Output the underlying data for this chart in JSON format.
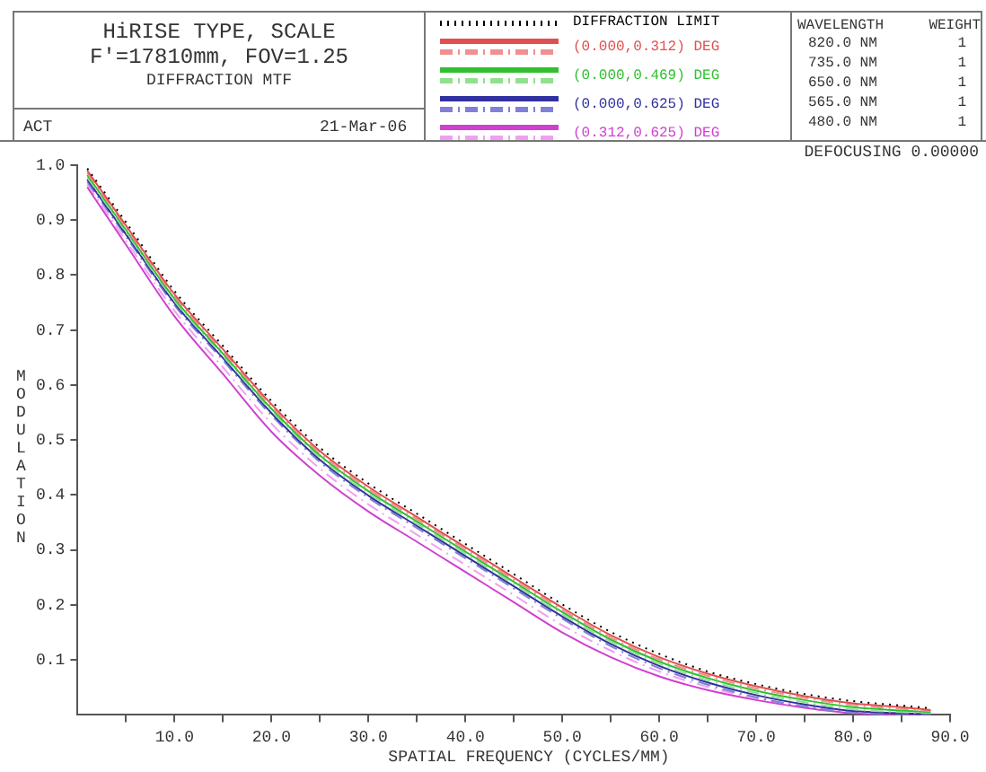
{
  "chart_data": {
    "type": "line",
    "title": "HiRISE TYPE, SCALE",
    "subtitle": "F'=17810mm, FOV=1.25",
    "xlabel": "SPATIAL FREQUENCY (CYCLES/MM)",
    "ylabel": "MODULATION",
    "annotations": [
      "DIFFRACTION MTF",
      "ACT",
      "21-Mar-06",
      "WAVELENGTH",
      "WEIGHT",
      "820.0 NM",
      "1",
      "735.0 NM",
      "1",
      "650.0 NM",
      "1",
      "565.0 NM",
      "1",
      "480.0 NM",
      "1",
      "DEFOCUSING 0.00000"
    ],
    "x": [
      1,
      5,
      10,
      15,
      20,
      25,
      30,
      35,
      40,
      45,
      50,
      55,
      60,
      65,
      70,
      75,
      80,
      85,
      88
    ],
    "series": [
      {
        "name": "DIFFRACTION LIMIT",
        "color": "#000000",
        "line_style": "dotted",
        "values": [
          0.994,
          0.896,
          0.771,
          0.671,
          0.571,
          0.486,
          0.421,
          0.366,
          0.311,
          0.256,
          0.201,
          0.151,
          0.111,
          0.079,
          0.056,
          0.038,
          0.025,
          0.017,
          0.012
        ]
      },
      {
        "name": "(0.000,0.312) DEG",
        "color": "#e05050",
        "line_style": "solid",
        "values": [
          0.99,
          0.89,
          0.765,
          0.665,
          0.565,
          0.48,
          0.415,
          0.36,
          0.305,
          0.25,
          0.195,
          0.145,
          0.105,
          0.075,
          0.052,
          0.034,
          0.021,
          0.014,
          0.009
        ]
      },
      {
        "color": "#f09090",
        "line_style": "dashed",
        "values": [
          0.986,
          0.886,
          0.761,
          0.661,
          0.561,
          0.476,
          0.411,
          0.356,
          0.301,
          0.246,
          0.191,
          0.141,
          0.101,
          0.071,
          0.048,
          0.031,
          0.018,
          0.011,
          0.007
        ]
      },
      {
        "name": "(0.000,0.469) DEG",
        "color": "#30c030",
        "line_style": "solid",
        "values": [
          0.982,
          0.882,
          0.757,
          0.657,
          0.557,
          0.472,
          0.407,
          0.352,
          0.297,
          0.242,
          0.187,
          0.137,
          0.097,
          0.067,
          0.044,
          0.027,
          0.014,
          0.008,
          0.005
        ]
      },
      {
        "color": "#90e090",
        "line_style": "dashed",
        "values": [
          0.978,
          0.878,
          0.753,
          0.653,
          0.553,
          0.468,
          0.403,
          0.348,
          0.293,
          0.238,
          0.183,
          0.133,
          0.093,
          0.063,
          0.04,
          0.023,
          0.01,
          0.005,
          0.003
        ]
      },
      {
        "name": "(0.000,0.625) DEG",
        "color": "#3030a0",
        "line_style": "solid",
        "values": [
          0.974,
          0.874,
          0.749,
          0.649,
          0.549,
          0.464,
          0.399,
          0.344,
          0.289,
          0.234,
          0.179,
          0.129,
          0.089,
          0.059,
          0.036,
          0.019,
          0.007,
          0.003,
          0.001
        ]
      },
      {
        "color": "#8080d8",
        "line_style": "dashed",
        "values": [
          0.97,
          0.87,
          0.745,
          0.645,
          0.545,
          0.46,
          0.395,
          0.34,
          0.285,
          0.23,
          0.175,
          0.125,
          0.085,
          0.055,
          0.032,
          0.015,
          0.004,
          0.001,
          0.0
        ]
      },
      {
        "name": "(0.312,0.625) DEG",
        "color": "#d040d0",
        "line_style": "solid",
        "values": [
          0.96,
          0.855,
          0.725,
          0.62,
          0.515,
          0.435,
          0.37,
          0.315,
          0.26,
          0.205,
          0.15,
          0.105,
          0.07,
          0.045,
          0.027,
          0.013,
          0.003,
          0.0,
          0.0
        ]
      },
      {
        "color": "#f0a0f0",
        "line_style": "dashed",
        "values": [
          0.965,
          0.862,
          0.735,
          0.632,
          0.53,
          0.448,
          0.383,
          0.328,
          0.273,
          0.218,
          0.163,
          0.117,
          0.079,
          0.051,
          0.03,
          0.016,
          0.005,
          0.002,
          0.0
        ]
      }
    ],
    "xlim": [
      0,
      90
    ],
    "ylim": [
      0,
      1
    ],
    "xticks": [
      {
        "value": 5,
        "label": null
      },
      {
        "value": 10,
        "label": "10.0"
      },
      {
        "value": 15,
        "label": null
      },
      {
        "value": 20,
        "label": "20.0"
      },
      {
        "value": 25,
        "label": null
      },
      {
        "value": 30,
        "label": "30.0"
      },
      {
        "value": 35,
        "label": null
      },
      {
        "value": 40,
        "label": "40.0"
      },
      {
        "value": 45,
        "label": null
      },
      {
        "value": 50,
        "label": "50.0"
      },
      {
        "value": 55,
        "label": null
      },
      {
        "value": 60,
        "label": "60.0"
      },
      {
        "value": 65,
        "label": null
      },
      {
        "value": 70,
        "label": "70.0"
      },
      {
        "value": 75,
        "label": null
      },
      {
        "value": 80,
        "label": "80.0"
      },
      {
        "value": 85,
        "label": null
      },
      {
        "value": 90,
        "label": "90.0"
      }
    ],
    "yticks": [
      0.1,
      0.2,
      0.3,
      0.4,
      0.5,
      0.6,
      0.7,
      0.8,
      0.9,
      {
        "value": 1,
        "label": "1.0"
      }
    ],
    "grid": false,
    "legend": "top right",
    "marker": "none"
  }
}
